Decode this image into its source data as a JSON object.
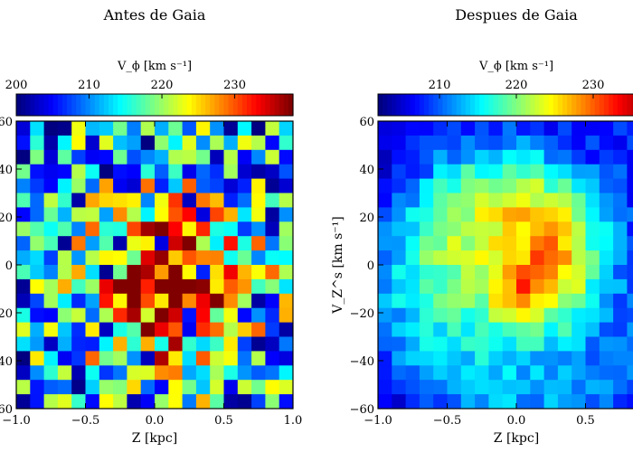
{
  "chart_data": [
    {
      "type": "heatmap",
      "title": "Antes de Gaia",
      "xlabel": "Z [kpc]",
      "ylabel": "",
      "xlim": [
        -1.0,
        1.0
      ],
      "ylim": [
        -60,
        60
      ],
      "xticks": [
        "−1.0",
        "−0.5",
        "0.0",
        "0.5",
        "1.0"
      ],
      "yticks": [
        "60",
        "40",
        "20",
        "0",
        "20",
        "40",
        "60"
      ],
      "grid": false,
      "colorbar": {
        "label": "V_ϕ [km s⁻¹]",
        "range": [
          200,
          238
        ],
        "ticks": [
          "200",
          "210",
          "220",
          "230"
        ],
        "tick_values": [
          200,
          210,
          220,
          230
        ],
        "colormap": "jet",
        "position": "top"
      },
      "grid_size": [
        20,
        20
      ],
      "distribution": {
        "peak_value": 236,
        "peak_center": [
          0.1,
          -8
        ],
        "sigma_z": 0.45,
        "sigma_vz": 28,
        "edge_value": 210,
        "noise": "high"
      }
    },
    {
      "type": "heatmap",
      "title": "Despues de Gaia",
      "xlabel": "Z [kpc]",
      "ylabel": "V_Z^s [km s⁻¹]",
      "xlim": [
        -1.0,
        1.0
      ],
      "ylim": [
        -60,
        60
      ],
      "xticks": [
        "−1.0",
        "−0.5",
        "0.0",
        "0.5"
      ],
      "yticks": [
        "60",
        "40",
        "20",
        "0",
        "−20",
        "−40",
        "−60"
      ],
      "grid": false,
      "colorbar": {
        "label": "V_ϕ [km s⁻¹]",
        "range": [
          202,
          238
        ],
        "ticks": [
          "210",
          "220",
          "230"
        ],
        "tick_values": [
          210,
          220,
          230
        ],
        "colormap": "jet",
        "position": "top"
      },
      "grid_size": [
        20,
        20
      ],
      "distribution": {
        "peak_value": 229,
        "peak_center": [
          0.0,
          0
        ],
        "sigma_z": 0.5,
        "sigma_vz": 30,
        "edge_value": 207,
        "noise": "low",
        "spiral_feature": true
      }
    }
  ]
}
